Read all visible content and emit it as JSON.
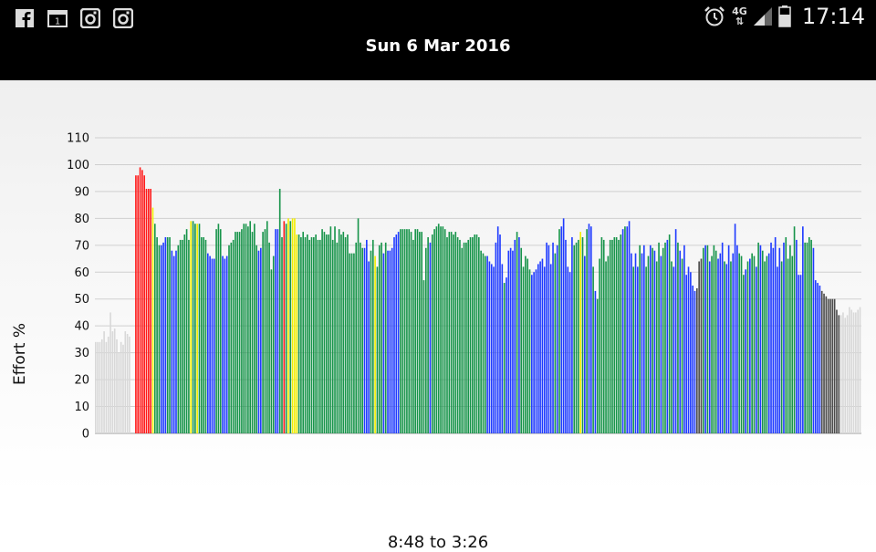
{
  "status_bar": {
    "time": "17:14",
    "network": "4G",
    "icons": [
      "facebook-icon",
      "calendar-icon",
      "instagram-icon",
      "instagram-icon",
      "alarm-icon",
      "signal-icon",
      "battery-icon"
    ],
    "calendar_day": "1"
  },
  "header": {
    "title": "Sun 6 Mar 2016"
  },
  "colors": {
    "red": "#ff1a1a",
    "yellow": "#f2ee00",
    "green": "#17944a",
    "blue": "#1f3bff",
    "dark": "#4a4a4a",
    "light": "#d8d8d8"
  },
  "chart_data": {
    "type": "bar",
    "title": "",
    "xlabel": "8:48 to 3:26",
    "ylabel": "Effort %",
    "ylim": [
      0,
      110
    ],
    "yticks": [
      0,
      10,
      20,
      30,
      40,
      50,
      60,
      70,
      80,
      90,
      100,
      110
    ],
    "grid": true,
    "values": [
      34,
      34,
      34,
      35,
      38,
      34,
      36,
      45,
      38,
      39,
      35,
      30,
      34,
      33,
      38,
      37,
      36,
      0,
      0,
      96,
      96,
      99,
      98,
      96,
      91,
      91,
      91,
      84,
      78,
      73,
      70,
      70,
      71,
      73,
      73,
      73,
      68,
      66,
      68,
      70,
      72,
      72,
      74,
      76,
      72,
      79,
      79,
      78,
      78,
      78,
      73,
      73,
      72,
      67,
      66,
      65,
      65,
      76,
      78,
      76,
      66,
      65,
      66,
      70,
      71,
      72,
      75,
      75,
      75,
      76,
      78,
      78,
      77,
      79,
      75,
      78,
      70,
      68,
      69,
      75,
      76,
      79,
      71,
      61,
      66,
      76,
      76,
      91,
      73,
      79,
      78,
      80,
      79,
      80,
      80,
      74,
      74,
      73,
      75,
      73,
      74,
      72,
      73,
      73,
      74,
      72,
      72,
      76,
      75,
      74,
      74,
      77,
      72,
      77,
      71,
      76,
      74,
      75,
      73,
      74,
      67,
      67,
      67,
      71,
      80,
      71,
      69,
      69,
      72,
      64,
      68,
      72,
      66,
      62,
      70,
      71,
      67,
      71,
      68,
      68,
      69,
      73,
      74,
      75,
      76,
      76,
      76,
      76,
      76,
      75,
      72,
      76,
      76,
      75,
      75,
      57,
      69,
      73,
      71,
      74,
      76,
      77,
      78,
      77,
      77,
      76,
      73,
      75,
      75,
      74,
      75,
      73,
      72,
      69,
      71,
      71,
      72,
      73,
      73,
      74,
      74,
      73,
      68,
      67,
      66,
      66,
      64,
      63,
      62,
      71,
      77,
      74,
      63,
      56,
      58,
      68,
      69,
      68,
      72,
      75,
      73,
      69,
      62,
      66,
      65,
      61,
      59,
      60,
      61,
      63,
      64,
      65,
      62,
      71,
      70,
      63,
      71,
      67,
      70,
      76,
      77,
      80,
      72,
      62,
      60,
      73,
      70,
      71,
      72,
      75,
      73,
      66,
      76,
      78,
      77,
      62,
      53,
      50,
      65,
      73,
      72,
      64,
      66,
      72,
      72,
      73,
      73,
      72,
      74,
      76,
      77,
      77,
      79,
      67,
      62,
      67,
      62,
      70,
      67,
      70,
      62,
      66,
      70,
      69,
      68,
      64,
      71,
      66,
      69,
      71,
      72,
      74,
      64,
      62,
      76,
      71,
      68,
      65,
      70,
      59,
      62,
      60,
      55,
      53,
      54,
      64,
      65,
      69,
      70,
      70,
      64,
      66,
      70,
      68,
      65,
      67,
      71,
      64,
      63,
      70,
      64,
      67,
      78,
      70,
      67,
      66,
      59,
      61,
      64,
      65,
      67,
      66,
      62,
      71,
      70,
      68,
      64,
      66,
      67,
      71,
      69,
      73,
      62,
      69,
      64,
      71,
      73,
      65,
      70,
      66,
      77,
      72,
      59,
      59,
      77,
      71,
      71,
      73,
      72,
      69,
      57,
      56,
      55,
      53,
      52,
      51,
      50,
      50,
      50,
      50,
      46,
      44,
      44,
      45,
      43,
      44,
      47,
      46,
      45,
      45,
      46,
      47
    ],
    "color_codes": "LLLLLLLLLLLLLLLLLLLRRRRRRRRYGGGBBBGGBBBGGGGGGYGGYGGGGBBBBGGGBBBGGGGGGGGGGGGGGBBGGGGGGBBGGRGYGYYYGGGGGGGGGGGGGGGGGGGGGGGGGGGGGGGBBBGGYGGGBGBBBBBBGGGGGGGGGGGGGGBGGGGGGGGGGGGGGGGGGGGGGGGGGBBBBBBBBGBBBBBGBGGGGGBBBBBBBBBBBGBGBBBBBBGGGYGBGBBGBGGGGGGGGGGGGBGBBBGBBGBBGGBGBGGBGGBGGBBGBGBBBBBBDDDGBGBGGGBBBGBBGBBBGGGBGBGGBGBGGGBBBBBBGBGGGGGBBBBGGGGBBBBDDDDDDDDDLLLLLLLLLLLLLLLLLLLL"
  }
}
